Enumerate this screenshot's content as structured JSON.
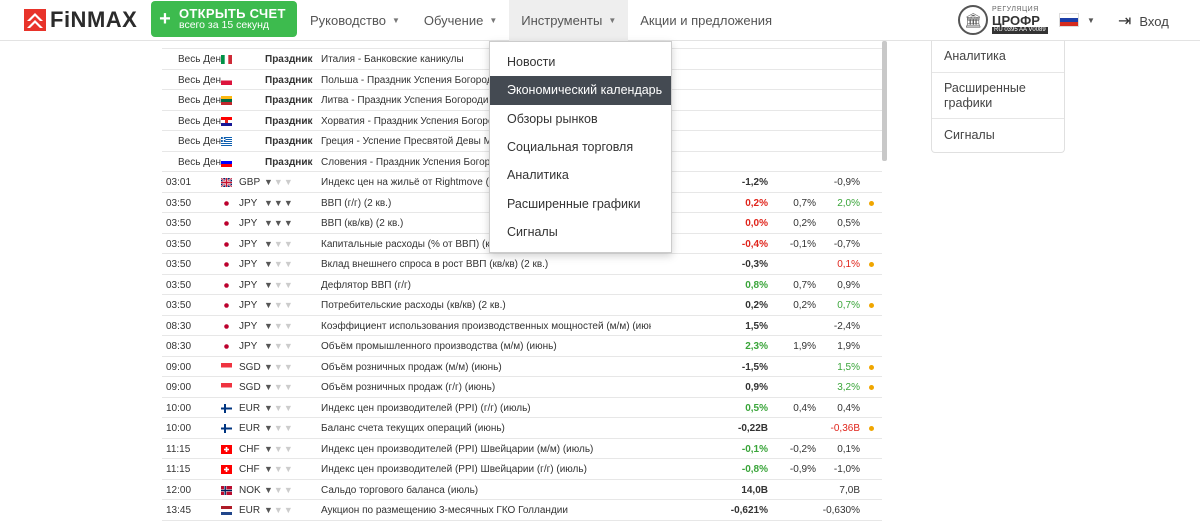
{
  "header": {
    "logo_text": "FiNMAX",
    "open_account": {
      "label": "ОТКРЫТЬ СЧЕТ",
      "sublabel": "всего за 15 секунд"
    },
    "nav": [
      {
        "label": "Руководство",
        "has_caret": true
      },
      {
        "label": "Обучение",
        "has_caret": true
      },
      {
        "label": "Инструменты",
        "has_caret": true,
        "active": true
      },
      {
        "label": "Акции и предложения",
        "has_caret": false
      }
    ],
    "regulation": {
      "line1": "РЕГУЛЯЦИЯ",
      "line2": "ЦРОФР",
      "line3": "RU 0395 AA V0089"
    },
    "language_flag": "flag-ru-icon",
    "login_label": "Вход"
  },
  "dropdown": {
    "items": [
      {
        "label": "Новости"
      },
      {
        "label": "Экономический календарь",
        "selected": true
      },
      {
        "label": "Обзоры рынков"
      },
      {
        "label": "Социальная торговля"
      },
      {
        "label": "Аналитика"
      },
      {
        "label": "Расширенные графики"
      },
      {
        "label": "Сигналы"
      }
    ]
  },
  "side_panel": {
    "items": [
      {
        "label": "Аналитика"
      },
      {
        "label": "Расширенные графики"
      },
      {
        "label": "Сигналы"
      }
    ]
  },
  "holidays": [
    {
      "time": "Весь День",
      "flag": "it",
      "type": "Праздник",
      "event": "Италия - Банковские каникулы"
    },
    {
      "time": "Весь День",
      "flag": "pl",
      "type": "Праздник",
      "event": "Польша - Праздник Успения Богородицы"
    },
    {
      "time": "Весь День",
      "flag": "lt",
      "type": "Праздник",
      "event": "Литва - Праздник Успения Богородицы"
    },
    {
      "time": "Весь День",
      "flag": "hr",
      "type": "Праздник",
      "event": "Хорватия - Праздник Успения Богородицы"
    },
    {
      "time": "Весь День",
      "flag": "gr",
      "type": "Праздник",
      "event": "Греция - Успение Пресвятой Девы Марии"
    },
    {
      "time": "Весь День",
      "flag": "si",
      "type": "Праздник",
      "event": "Словения - Праздник Успения Богородицы"
    }
  ],
  "events": [
    {
      "time": "03:01",
      "flag": "gb",
      "currency": "GBP",
      "volatility": 1,
      "event": "Индекс цен на жильё от Rightmove (м/м)",
      "actual": "-1,2%",
      "actual_color": "black",
      "forecast": "",
      "previous": "-0,9%",
      "previous_color": "black",
      "dot": false
    },
    {
      "time": "03:50",
      "flag": "jp",
      "currency": "JPY",
      "volatility": 3,
      "event": "ВВП (г/г) (2 кв.)",
      "actual": "0,2%",
      "actual_color": "red",
      "forecast": "0,7%",
      "previous": "2,0%",
      "previous_color": "green",
      "dot": true
    },
    {
      "time": "03:50",
      "flag": "jp",
      "currency": "JPY",
      "volatility": 3,
      "event": "ВВП (кв/кв) (2 кв.)",
      "actual": "0,0%",
      "actual_color": "red",
      "forecast": "0,2%",
      "previous": "0,5%",
      "previous_color": "black",
      "dot": false
    },
    {
      "time": "03:50",
      "flag": "jp",
      "currency": "JPY",
      "volatility": 1,
      "event": "Капитальные расходы (% от ВВП) (кв/кв) (2 кв.)",
      "actual": "-0,4%",
      "actual_color": "red",
      "forecast": "-0,1%",
      "previous": "-0,7%",
      "previous_color": "black",
      "dot": false
    },
    {
      "time": "03:50",
      "flag": "jp",
      "currency": "JPY",
      "volatility": 1,
      "event": "Вклад внешнего спроса в рост ВВП (кв/кв) (2 кв.)",
      "actual": "-0,3%",
      "actual_color": "black",
      "forecast": "",
      "previous": "0,1%",
      "previous_color": "red",
      "dot": true
    },
    {
      "time": "03:50",
      "flag": "jp",
      "currency": "JPY",
      "volatility": 1,
      "event": "Дефлятор ВВП (г/г)",
      "actual": "0,8%",
      "actual_color": "green",
      "forecast": "0,7%",
      "previous": "0,9%",
      "previous_color": "black",
      "dot": false
    },
    {
      "time": "03:50",
      "flag": "jp",
      "currency": "JPY",
      "volatility": 1,
      "event": "Потребительские расходы (кв/кв) (2 кв.)",
      "actual": "0,2%",
      "actual_color": "black",
      "forecast": "0,2%",
      "previous": "0,7%",
      "previous_color": "green",
      "dot": true
    },
    {
      "time": "08:30",
      "flag": "jp",
      "currency": "JPY",
      "volatility": 1,
      "event": "Коэффициент использования производственных мощностей (м/м) (июнь)",
      "actual": "1,5%",
      "actual_color": "black",
      "forecast": "",
      "previous": "-2,4%",
      "previous_color": "black",
      "dot": false
    },
    {
      "time": "08:30",
      "flag": "jp",
      "currency": "JPY",
      "volatility": 1,
      "event": "Объём промышленного производства (м/м) (июнь)",
      "actual": "2,3%",
      "actual_color": "green",
      "forecast": "1,9%",
      "previous": "1,9%",
      "previous_color": "black",
      "dot": false
    },
    {
      "time": "09:00",
      "flag": "sg",
      "currency": "SGD",
      "volatility": 1,
      "event": "Объём розничных продаж (м/м) (июнь)",
      "actual": "-1,5%",
      "actual_color": "black",
      "forecast": "",
      "previous": "1,5%",
      "previous_color": "green",
      "dot": true
    },
    {
      "time": "09:00",
      "flag": "sg",
      "currency": "SGD",
      "volatility": 1,
      "event": "Объём розничных продаж (г/г) (июнь)",
      "actual": "0,9%",
      "actual_color": "black",
      "forecast": "",
      "previous": "3,2%",
      "previous_color": "green",
      "dot": true
    },
    {
      "time": "10:00",
      "flag": "fi",
      "currency": "EUR",
      "volatility": 1,
      "event": "Индекс цен производителей (PPI) (г/г) (июль)",
      "actual": "0,5%",
      "actual_color": "green",
      "forecast": "0,4%",
      "previous": "0,4%",
      "previous_color": "black",
      "dot": false
    },
    {
      "time": "10:00",
      "flag": "fi",
      "currency": "EUR",
      "volatility": 1,
      "event": "Баланс счета текущих операций (июнь)",
      "actual": "-0,22B",
      "actual_color": "black",
      "forecast": "",
      "previous": "-0,36B",
      "previous_color": "red",
      "dot": true
    },
    {
      "time": "11:15",
      "flag": "ch",
      "currency": "CHF",
      "volatility": 1,
      "event": "Индекс цен производителей (PPI) Швейцарии (м/м) (июль)",
      "actual": "-0,1%",
      "actual_color": "green",
      "forecast": "-0,2%",
      "previous": "0,1%",
      "previous_color": "black",
      "dot": false
    },
    {
      "time": "11:15",
      "flag": "ch",
      "currency": "CHF",
      "volatility": 1,
      "event": "Индекс цен производителей (PPI) Швейцарии (г/г) (июль)",
      "actual": "-0,8%",
      "actual_color": "green",
      "forecast": "-0,9%",
      "previous": "-1,0%",
      "previous_color": "black",
      "dot": false
    },
    {
      "time": "12:00",
      "flag": "no",
      "currency": "NOK",
      "volatility": 1,
      "event": "Сальдо торгового баланса (июль)",
      "actual": "14,0B",
      "actual_color": "black",
      "forecast": "",
      "previous": "7,0B",
      "previous_color": "black",
      "dot": false
    },
    {
      "time": "13:45",
      "flag": "nl",
      "currency": "EUR",
      "volatility": 1,
      "event": "Аукцион по размещению 3-месячных ГКО Голландии",
      "actual": "-0,621%",
      "actual_color": "black",
      "forecast": "",
      "previous": "-0,630%",
      "previous_color": "black",
      "dot": false
    }
  ],
  "colors": {
    "accent_green": "#3dbb4e",
    "red": "#e0241b",
    "green": "#3aa53a",
    "dot": "#f0a600",
    "dropdown_selected": "#444a52"
  }
}
